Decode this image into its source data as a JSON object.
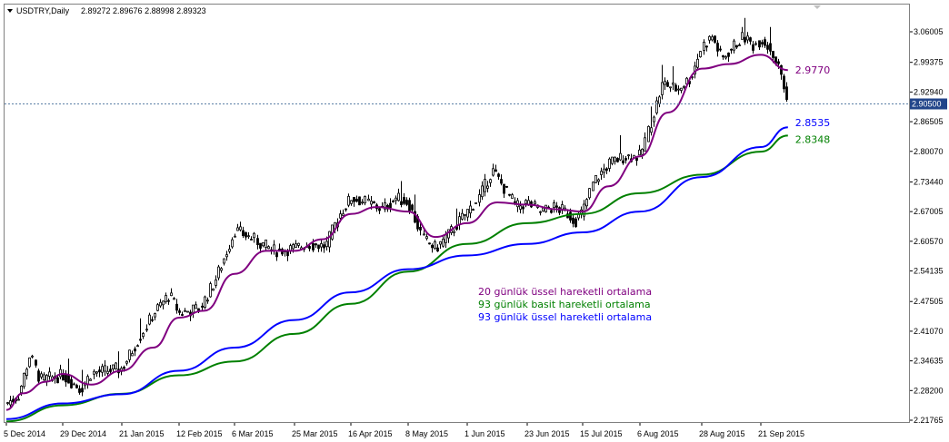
{
  "header": {
    "symbol": "USDTRY,Daily",
    "ohlc": "2.89272 2.89676 2.88998 2.89323",
    "menu_icon": "triangle-down-icon",
    "scroll_marker_icon": "triangle-down-icon"
  },
  "colors": {
    "background": "#ffffff",
    "frame": "#808080",
    "candle": "#000000",
    "ema20": "#800080",
    "sma93": "#008000",
    "ema93": "#0000ff",
    "current_price_line": "#5b7fa6",
    "current_price_badge": "#22458a"
  },
  "legend": [
    {
      "key": "ema20",
      "text": "20 günlük üssel hareketli ortalama",
      "color": "#800080"
    },
    {
      "key": "sma93",
      "text": "93 günlük basit hareketli ortalama",
      "color": "#008000"
    },
    {
      "key": "ema93",
      "text": "93 günlük üssel hareketli ortalama",
      "color": "#0000ff"
    }
  ],
  "chart_data": {
    "type": "line",
    "instrument": "USDTRY",
    "timeframe": "Daily",
    "ylim": [
      2.2,
      3.09
    ],
    "y_ticks": [
      "3.06005",
      "2.99375",
      "2.92940",
      "2.86505",
      "2.80070",
      "2.73440",
      "2.67005",
      "2.60570",
      "2.54135",
      "2.47505",
      "2.41070",
      "2.34635",
      "2.28200",
      "2.21765"
    ],
    "x_ticks": [
      "5 Dec 2014",
      "29 Dec 2014",
      "21 Jan 2015",
      "12 Feb 2015",
      "6 Mar 2015",
      "25 Mar 2015",
      "16 Apr 2015",
      "8 May 2015",
      "1 Jun 2015",
      "23 Jun 2015",
      "15 Jul 2015",
      "6 Aug 2015",
      "28 Aug 2015",
      "21 Sep 2015"
    ],
    "current_price": "2.90500",
    "series": [
      {
        "key": "ema20",
        "name": "20 günlük üssel hareketli ortalama",
        "end_label": "2.9770",
        "points": [
          [
            "5 Dec 2014",
            2.24
          ],
          [
            "12 Dec 2014",
            2.276
          ],
          [
            "22 Dec 2014",
            2.301
          ],
          [
            "29 Dec 2014",
            2.318
          ],
          [
            "9 Jan 2015",
            2.295
          ],
          [
            "21 Jan 2015",
            2.325
          ],
          [
            "2 Feb 2015",
            2.375
          ],
          [
            "12 Feb 2015",
            2.44
          ],
          [
            "22 Feb 2015",
            2.455
          ],
          [
            "6 Mar 2015",
            2.535
          ],
          [
            "16 Mar 2015",
            2.585
          ],
          [
            "25 Mar 2015",
            2.585
          ],
          [
            "5 Apr 2015",
            2.61
          ],
          [
            "16 Apr 2015",
            2.665
          ],
          [
            "26 Apr 2015",
            2.68
          ],
          [
            "8 May 2015",
            2.67
          ],
          [
            "19 May 2015",
            2.615
          ],
          [
            "1 Jun 2015",
            2.645
          ],
          [
            "12 Jun 2015",
            2.69
          ],
          [
            "23 Jun 2015",
            2.685
          ],
          [
            "5 Jul 2015",
            2.675
          ],
          [
            "15 Jul 2015",
            2.67
          ],
          [
            "25 Jul 2015",
            2.725
          ],
          [
            "6 Aug 2015",
            2.79
          ],
          [
            "16 Aug 2015",
            2.885
          ],
          [
            "28 Aug 2015",
            2.98
          ],
          [
            "8 Sep 2015",
            2.99
          ],
          [
            "21 Sep 2015",
            3.01
          ],
          [
            "2 Oct 2015",
            2.977
          ]
        ]
      },
      {
        "key": "sma93",
        "name": "93 günlük basit hareketli ortalama",
        "end_label": "2.8348",
        "points": [
          [
            "5 Dec 2014",
            2.215
          ],
          [
            "29 Dec 2014",
            2.25
          ],
          [
            "21 Jan 2015",
            2.275
          ],
          [
            "12 Feb 2015",
            2.315
          ],
          [
            "6 Mar 2015",
            2.345
          ],
          [
            "25 Mar 2015",
            2.405
          ],
          [
            "16 Apr 2015",
            2.47
          ],
          [
            "8 May 2015",
            2.54
          ],
          [
            "1 Jun 2015",
            2.6
          ],
          [
            "23 Jun 2015",
            2.645
          ],
          [
            "15 Jul 2015",
            2.665
          ],
          [
            "6 Aug 2015",
            2.71
          ],
          [
            "28 Aug 2015",
            2.75
          ],
          [
            "21 Sep 2015",
            2.8
          ],
          [
            "2 Oct 2015",
            2.835
          ]
        ]
      },
      {
        "key": "ema93",
        "name": "93 günlük üssel hareketli ortalama",
        "end_label": "2.8535",
        "points": [
          [
            "5 Dec 2014",
            2.22
          ],
          [
            "29 Dec 2014",
            2.254
          ],
          [
            "21 Jan 2015",
            2.274
          ],
          [
            "12 Feb 2015",
            2.325
          ],
          [
            "6 Mar 2015",
            2.375
          ],
          [
            "25 Mar 2015",
            2.435
          ],
          [
            "16 Apr 2015",
            2.495
          ],
          [
            "8 May 2015",
            2.545
          ],
          [
            "1 Jun 2015",
            2.575
          ],
          [
            "23 Jun 2015",
            2.6
          ],
          [
            "15 Jul 2015",
            2.625
          ],
          [
            "6 Aug 2015",
            2.67
          ],
          [
            "28 Aug 2015",
            2.745
          ],
          [
            "21 Sep 2015",
            2.81
          ],
          [
            "2 Oct 2015",
            2.853
          ]
        ]
      }
    ],
    "price_path": [
      [
        "5 Dec 2014",
        2.255
      ],
      [
        "10 Dec 2014",
        2.27
      ],
      [
        "15 Dec 2014",
        2.36
      ],
      [
        "19 Dec 2014",
        2.305
      ],
      [
        "29 Dec 2014",
        2.315
      ],
      [
        "5 Jan 2015",
        2.285
      ],
      [
        "9 Jan 2015",
        2.32
      ],
      [
        "21 Jan 2015",
        2.33
      ],
      [
        "27 Jan 2015",
        2.39
      ],
      [
        "2 Feb 2015",
        2.45
      ],
      [
        "8 Feb 2015",
        2.49
      ],
      [
        "12 Feb 2015",
        2.45
      ],
      [
        "20 Feb 2015",
        2.46
      ],
      [
        "26 Feb 2015",
        2.52
      ],
      [
        "1 Mar 2015",
        2.56
      ],
      [
        "6 Mar 2015",
        2.63
      ],
      [
        "12 Mar 2015",
        2.61
      ],
      [
        "18 Mar 2015",
        2.585
      ],
      [
        "25 Mar 2015",
        2.59
      ],
      [
        "30 Mar 2015",
        2.6
      ],
      [
        "6 Apr 2015",
        2.595
      ],
      [
        "11 Apr 2015",
        2.66
      ],
      [
        "16 Apr 2015",
        2.7
      ],
      [
        "22 Apr 2015",
        2.69
      ],
      [
        "28 Apr 2015",
        2.675
      ],
      [
        "3 May 2015",
        2.7
      ],
      [
        "8 May 2015",
        2.69
      ],
      [
        "14 May 2015",
        2.61
      ],
      [
        "19 May 2015",
        2.59
      ],
      [
        "25 May 2015",
        2.625
      ],
      [
        "1 Jun 2015",
        2.67
      ],
      [
        "5 Jun 2015",
        2.7
      ],
      [
        "10 Jun 2015",
        2.76
      ],
      [
        "15 Jun 2015",
        2.715
      ],
      [
        "19 Jun 2015",
        2.68
      ],
      [
        "23 Jun 2015",
        2.69
      ],
      [
        "28 Jun 2015",
        2.67
      ],
      [
        "3 Jul 2015",
        2.68
      ],
      [
        "8 Jul 2015",
        2.67
      ],
      [
        "12 Jul 2015",
        2.65
      ],
      [
        "15 Jul 2015",
        2.67
      ],
      [
        "19 Jul 2015",
        2.735
      ],
      [
        "25 Jul 2015",
        2.775
      ],
      [
        "31 Jul 2015",
        2.79
      ],
      [
        "6 Aug 2015",
        2.79
      ],
      [
        "10 Aug 2015",
        2.87
      ],
      [
        "14 Aug 2015",
        2.95
      ],
      [
        "19 Aug 2015",
        2.935
      ],
      [
        "24 Aug 2015",
        2.96
      ],
      [
        "28 Aug 2015",
        3.03
      ],
      [
        "1 Sep 2015",
        3.05
      ],
      [
        "5 Sep 2015",
        3.0
      ],
      [
        "10 Sep 2015",
        3.03
      ],
      [
        "14 Sep 2015",
        3.05
      ],
      [
        "18 Sep 2015",
        3.03
      ],
      [
        "21 Sep 2015",
        3.045
      ],
      [
        "25 Sep 2015",
        3.02
      ],
      [
        "29 Sep 2015",
        2.97
      ],
      [
        "2 Oct 2015",
        2.895
      ]
    ]
  }
}
